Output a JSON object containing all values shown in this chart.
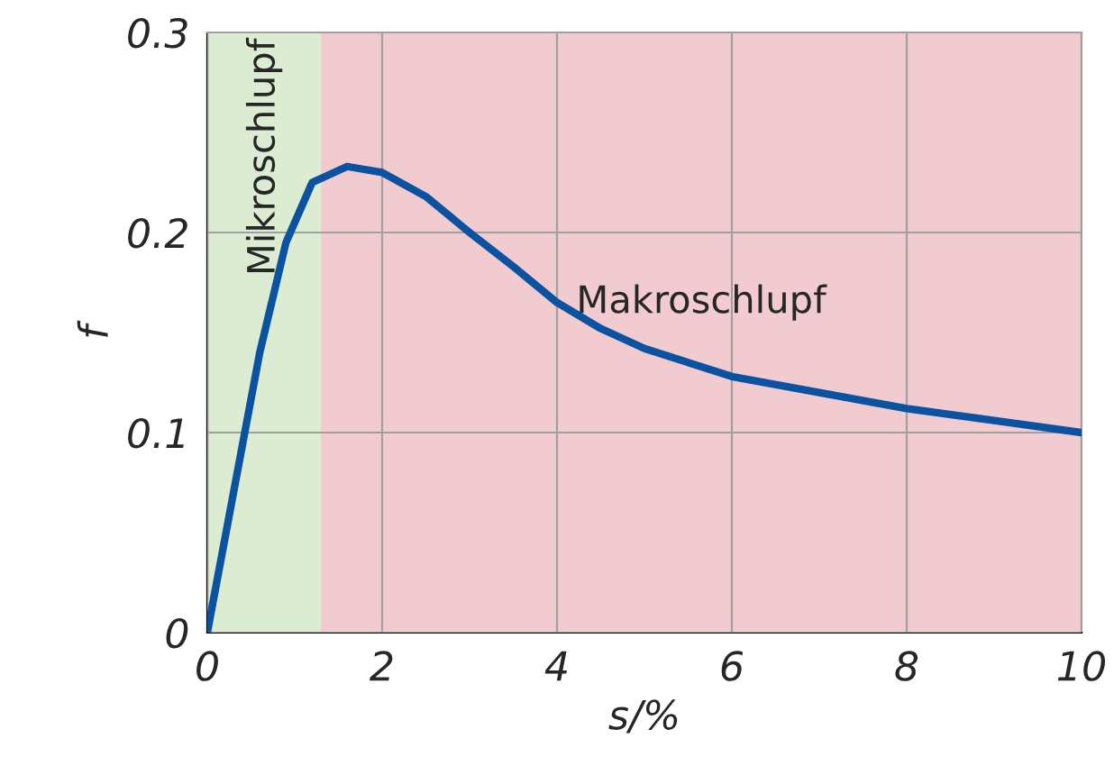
{
  "chart_data": {
    "type": "line",
    "xlabel": "s/%",
    "ylabel": "f",
    "series": [
      {
        "color": "#0b52a0",
        "x": [
          0,
          0.3,
          0.6,
          0.9,
          1.2,
          1.6,
          2,
          2.5,
          3,
          3.5,
          4,
          4.5,
          5,
          6,
          7,
          8,
          9,
          10
        ],
        "values": [
          0,
          0.07,
          0.14,
          0.195,
          0.225,
          0.233,
          0.23,
          0.218,
          0.2,
          0.183,
          0.165,
          0.152,
          0.142,
          0.128,
          0.12,
          0.112,
          0.106,
          0.1
        ]
      }
    ],
    "bands": [
      {
        "axis": "x",
        "from": 0,
        "to": 1.3,
        "label": "Mikroschlupf",
        "color": "#dcecd2"
      },
      {
        "axis": "x",
        "from": 1.3,
        "to": 10,
        "label": "Makroschlupf",
        "color": "#f2cbd1"
      }
    ],
    "xlim": [
      0,
      10
    ],
    "ylim": [
      0,
      0.3
    ],
    "xticks": [
      0,
      2,
      4,
      6,
      8,
      10
    ],
    "yticks": [
      0,
      0.1,
      0.2,
      0.3
    ],
    "grid": true,
    "marker": "none",
    "line_style": "solid"
  }
}
